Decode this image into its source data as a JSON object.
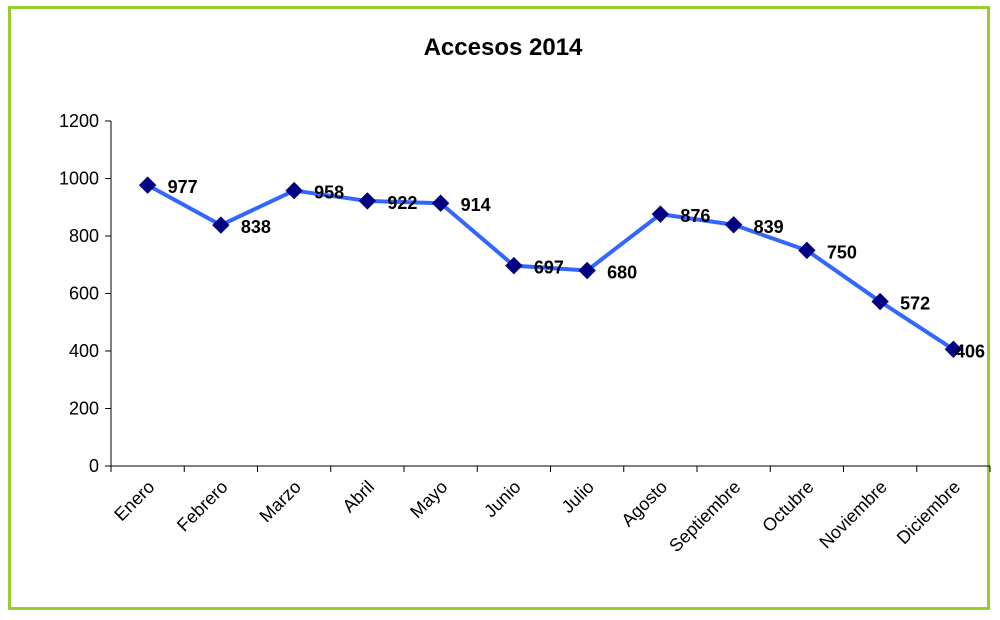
{
  "chart_data": {
    "type": "line",
    "title": "Accesos 2014",
    "xlabel": "",
    "ylabel": "",
    "categories": [
      "Enero",
      "Febrero",
      "Marzo",
      "Abril",
      "Mayo",
      "Junio",
      "Julio",
      "Agosto",
      "Septiembre",
      "Octubre",
      "Noviembre",
      "Diciembre"
    ],
    "series": [
      {
        "values": [
          977,
          838,
          958,
          922,
          914,
          697,
          680,
          876,
          839,
          750,
          572,
          406
        ]
      }
    ],
    "ylim": [
      0,
      1200
    ],
    "yticks": [
      0,
      200,
      400,
      600,
      800,
      1000,
      1200
    ],
    "grid": false,
    "legend": "none",
    "colors": {
      "line": "#3366ff",
      "marker": "#000080",
      "frame_border": "#99cc33"
    },
    "marker": "diamond"
  }
}
